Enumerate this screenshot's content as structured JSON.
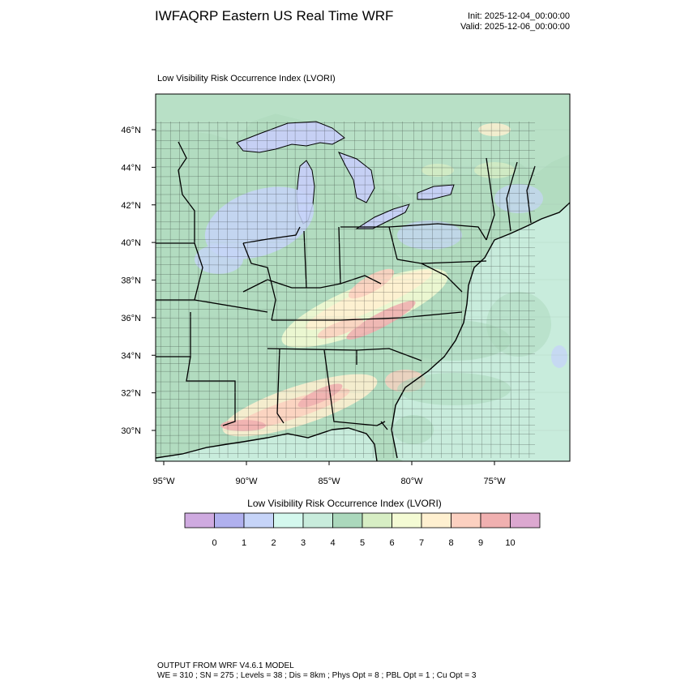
{
  "header": {
    "title": "IWFAQRP Eastern US Real Time WRF",
    "init_label": "Init: 2025-12-04_00:00:00",
    "valid_label": "Valid: 2025-12-06_00:00:00"
  },
  "panel": {
    "title": "Low Visibility Risk Occurrence Index   (LVORI)"
  },
  "map": {
    "lat_labels": [
      "46°N",
      "44°N",
      "42°N",
      "40°N",
      "38°N",
      "36°N",
      "34°N",
      "32°N",
      "30°N"
    ],
    "lon_labels": [
      "95°W",
      "90°W",
      "85°W",
      "80°W",
      "75°W"
    ],
    "lat_values": [
      46,
      44,
      42,
      40,
      38,
      36,
      34,
      32,
      30
    ],
    "lon_values": [
      -95,
      -90,
      -85,
      -80,
      -75
    ],
    "colors": {
      "ocean": "#c8ecdc",
      "land_base": "#b2dcc0",
      "border": "#000000"
    }
  },
  "colorbar": {
    "title": "Low Visibility Risk Occurrence Index  (LVORI)",
    "labels": [
      "0",
      "1",
      "2",
      "3",
      "4",
      "5",
      "6",
      "7",
      "8",
      "9",
      "10"
    ],
    "colors": [
      "#cfaae0",
      "#b0b0ee",
      "#c6d4f8",
      "#d4f8ee",
      "#c8ecdc",
      "#abd8bc",
      "#d7eec4",
      "#f4fbd4",
      "#fff0d0",
      "#fcd0c0",
      "#f0b0b0",
      "#dca8d0"
    ]
  },
  "footer": {
    "line1": "OUTPUT FROM WRF V4.6.1 MODEL",
    "line2": "WE = 310 ; SN = 275 ; Levels = 38 ; Dis = 8km ; Phys Opt = 8 ; PBL Opt = 1 ; Cu Opt = 3"
  }
}
